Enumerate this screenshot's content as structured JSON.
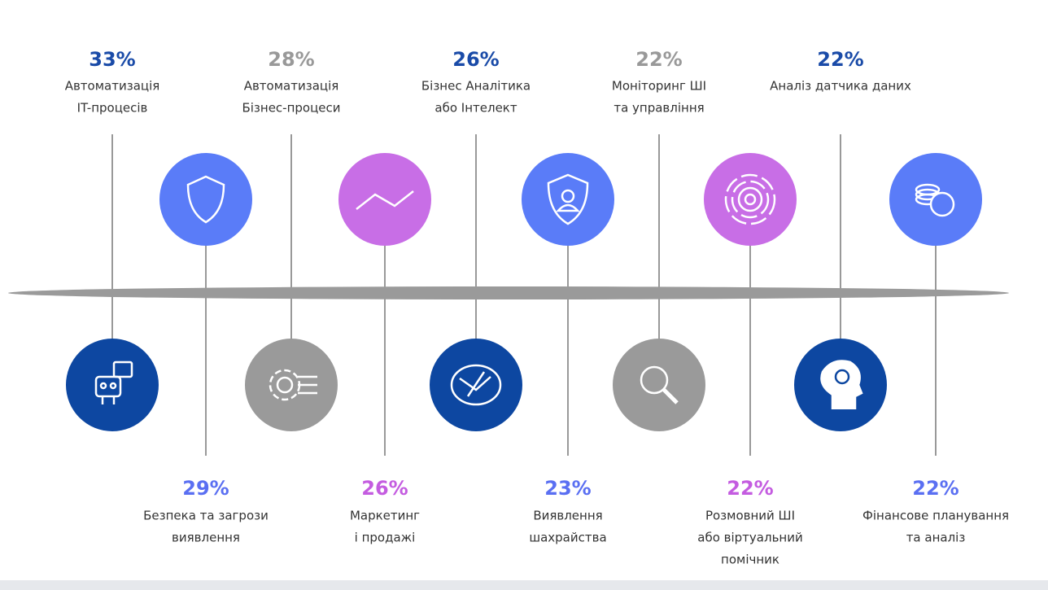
{
  "items_top": [
    {
      "percent": "33%",
      "label": [
        "Автоматизація",
        "IT-процесів"
      ]
    },
    {
      "percent": "28%",
      "label": [
        "Автоматизація",
        "Бізнес-процеси"
      ]
    },
    {
      "percent": "26%",
      "label": [
        "Бізнес Аналітика",
        "або Інтелект"
      ]
    },
    {
      "percent": "22%",
      "label": [
        "Моніторинг ШІ",
        "та управління"
      ]
    },
    {
      "percent": "22%",
      "label": [
        "Аналіз датчика даних"
      ]
    }
  ],
  "items_bottom": [
    {
      "percent": "29%",
      "label": [
        "Безпека та загрози",
        "виявлення"
      ]
    },
    {
      "percent": "26%",
      "label": [
        "Маркетинг",
        "і продажі"
      ]
    },
    {
      "percent": "23%",
      "label": [
        "Виявлення",
        "шахрайства"
      ]
    },
    {
      "percent": "22%",
      "label": [
        "Розмовний ШІ",
        "або віртуальний",
        "помічник"
      ]
    },
    {
      "percent": "22%",
      "label": [
        "Фінансове планування",
        "та аналіз"
      ]
    }
  ]
}
